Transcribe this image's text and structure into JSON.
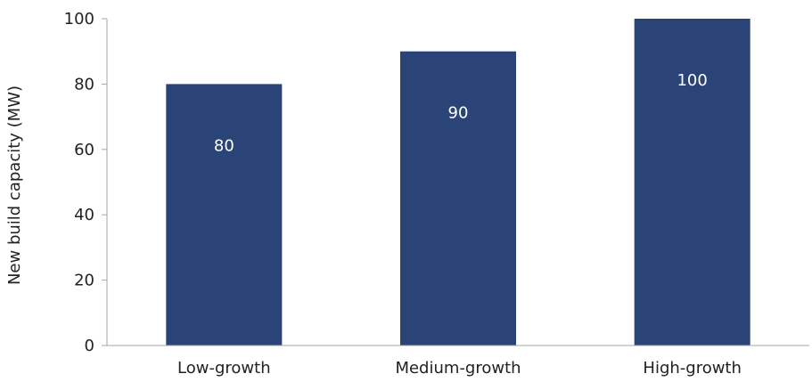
{
  "chart_data": {
    "type": "bar",
    "categories": [
      "Low-growth",
      "Medium-growth",
      "High-growth"
    ],
    "values": [
      80,
      90,
      100
    ],
    "data_labels": [
      "80",
      "90",
      "100"
    ],
    "xlabel": "",
    "ylabel": "New build capacity (MW)",
    "ylim": [
      0,
      100
    ],
    "yticks": [
      0,
      20,
      40,
      60,
      80,
      100
    ],
    "ytick_labels": [
      "0",
      "20",
      "40",
      "60",
      "80",
      "100"
    ],
    "bar_color": "#2b4478",
    "data_label_color": "#ffffff",
    "grid": false,
    "legend": "none"
  }
}
